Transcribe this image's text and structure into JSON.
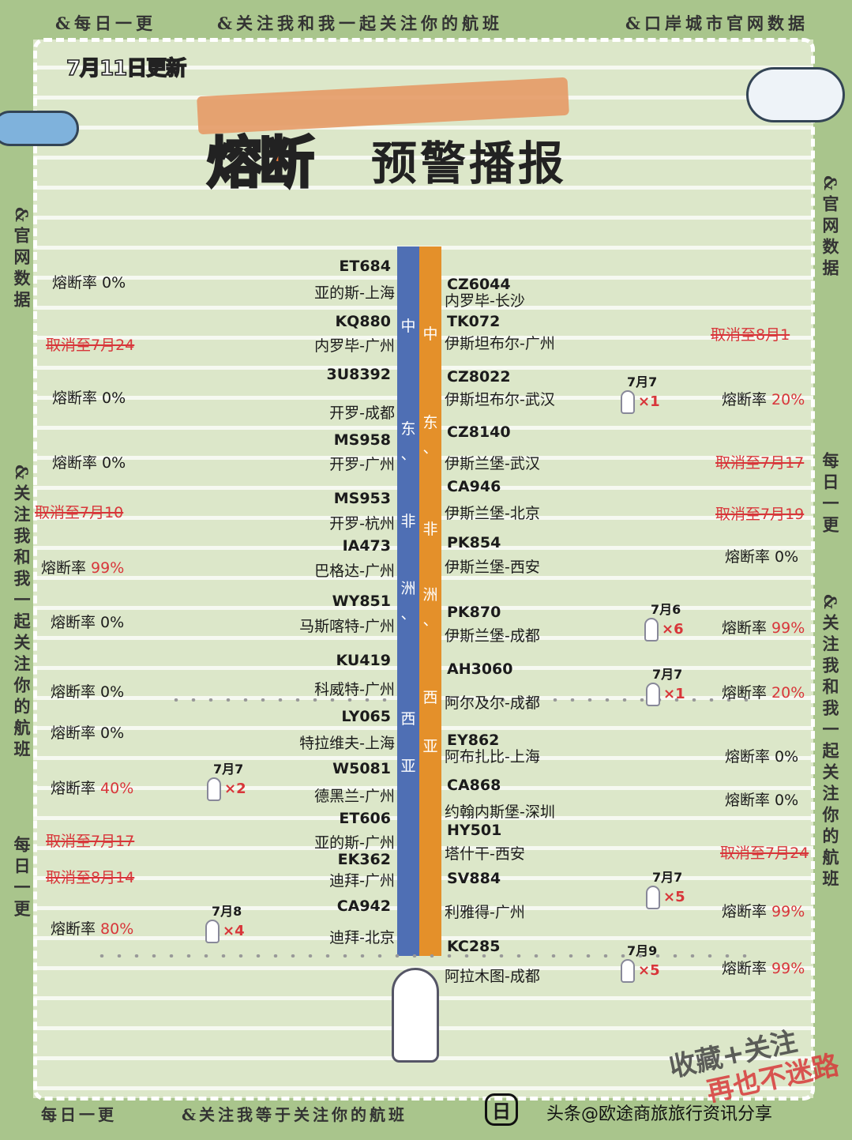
{
  "header": {
    "top_left": "&每日一更",
    "top_center": "&关注我和我一起关注你的航班",
    "top_right": "&口岸城市官网数据",
    "update": "7月11日更新",
    "title_highlight": "熔断",
    "title_rest": "预警播报"
  },
  "side": {
    "left_top": "&官网数据",
    "left_mid": "&关注我和我一起关注你的航班",
    "left_bottom": "每日一更",
    "right_top": "&官网数据",
    "right_mid": "每日一更",
    "right_bottom": "&关注我和我一起关注你的航班"
  },
  "region_label": [
    "中",
    "东",
    "、",
    "非",
    "洲",
    "、",
    "西",
    "亚"
  ],
  "colors": {
    "left_bar": "#4f6fb4",
    "right_bar": "#e4902a",
    "alert": "#d8363a",
    "background": "#dce7c9"
  },
  "left": [
    {
      "flight": "ET684",
      "route": "亚的斯-上海",
      "label": "熔断率",
      "value": "0%",
      "red": false
    },
    {
      "flight": "KQ880",
      "route": "内罗毕-广州",
      "cancel": "取消至7月24"
    },
    {
      "flight": "3U8392",
      "route": "开罗-成都",
      "label": "熔断率",
      "value": "0%",
      "red": false
    },
    {
      "flight": "MS958",
      "route": "开罗-广州",
      "label": "熔断率",
      "value": "0%",
      "red": false
    },
    {
      "flight": "MS953",
      "route": "开罗-杭州",
      "cancel": "取消至7月10"
    },
    {
      "flight": "IA473",
      "route": "巴格达-广州",
      "label": "熔断率",
      "value": "99%",
      "red": true
    },
    {
      "flight": "WY851",
      "route": "马斯喀特-广州",
      "label": "熔断率",
      "value": "0%",
      "red": false
    },
    {
      "flight": "KU419",
      "route": "科威特-广州",
      "label": "熔断率",
      "value": "0%",
      "red": false
    },
    {
      "flight": "LY065",
      "route": "特拉维夫-上海",
      "label": "熔断率",
      "value": "0%",
      "red": false
    },
    {
      "flight": "W5081",
      "route": "德黑兰-广州",
      "label": "熔断率",
      "value": "40%",
      "red": true,
      "case_date": "7月7",
      "case_count": "×2"
    },
    {
      "flight": "ET606",
      "route": "亚的斯-广州",
      "cancel": "取消至7月17"
    },
    {
      "flight": "EK362",
      "route": "迪拜-广州",
      "cancel": "取消至8月14"
    },
    {
      "flight": "CA942",
      "route": "迪拜-北京",
      "label": "熔断率",
      "value": "80%",
      "red": true,
      "case_date": "7月8",
      "case_count": "×4"
    }
  ],
  "right": [
    {
      "flight": "CZ6044",
      "route": "内罗毕-长沙"
    },
    {
      "flight": "TK072",
      "route": "伊斯坦布尔-广州",
      "cancel": "取消至8月1"
    },
    {
      "flight": "CZ8022",
      "route": "伊斯坦布尔-武汉",
      "label": "熔断率",
      "value": "20%",
      "red": true,
      "case_date": "7月7",
      "case_count": "×1"
    },
    {
      "flight": "CZ8140",
      "route": "伊斯兰堡-武汉",
      "cancel": "取消至7月17"
    },
    {
      "flight": "CA946",
      "route": "伊斯兰堡-北京",
      "cancel": "取消至7月19"
    },
    {
      "flight": "PK854",
      "route": "伊斯兰堡-西安",
      "label": "熔断率",
      "value": "0%",
      "red": false
    },
    {
      "flight": "PK870",
      "route": "伊斯兰堡-成都",
      "label": "熔断率",
      "value": "99%",
      "red": true,
      "case_date": "7月6",
      "case_count": "×6"
    },
    {
      "flight": "AH3060",
      "route": "阿尔及尔-成都",
      "label": "熔断率",
      "value": "20%",
      "red": true,
      "case_date": "7月7",
      "case_count": "×1"
    },
    {
      "flight": "EY862",
      "route": "阿布扎比-上海",
      "label": "熔断率",
      "value": "0%",
      "red": false
    },
    {
      "flight": "CA868",
      "route": "约翰内斯堡-深圳",
      "label": "熔断率",
      "value": "0%",
      "red": false
    },
    {
      "flight": "HY501",
      "route": "塔什干-西安",
      "cancel": "取消至7月24"
    },
    {
      "flight": "SV884",
      "route": "利雅得-广州",
      "label": "熔断率",
      "value": "99%",
      "red": true,
      "case_date": "7月7",
      "case_count": "×5"
    },
    {
      "flight": "KC285",
      "route": "阿拉木图-成都",
      "label": "熔断率",
      "value": "99%",
      "red": true,
      "case_date": "7月9",
      "case_count": "×5"
    }
  ],
  "footer": {
    "left": "每日一更",
    "center": "&关注我等于关注你的航班",
    "day_mark": "日",
    "credit": "头条@欧途商旅旅行资讯分享",
    "stamp_line1": "收藏+关注",
    "stamp_line2": "再也不迷路"
  }
}
